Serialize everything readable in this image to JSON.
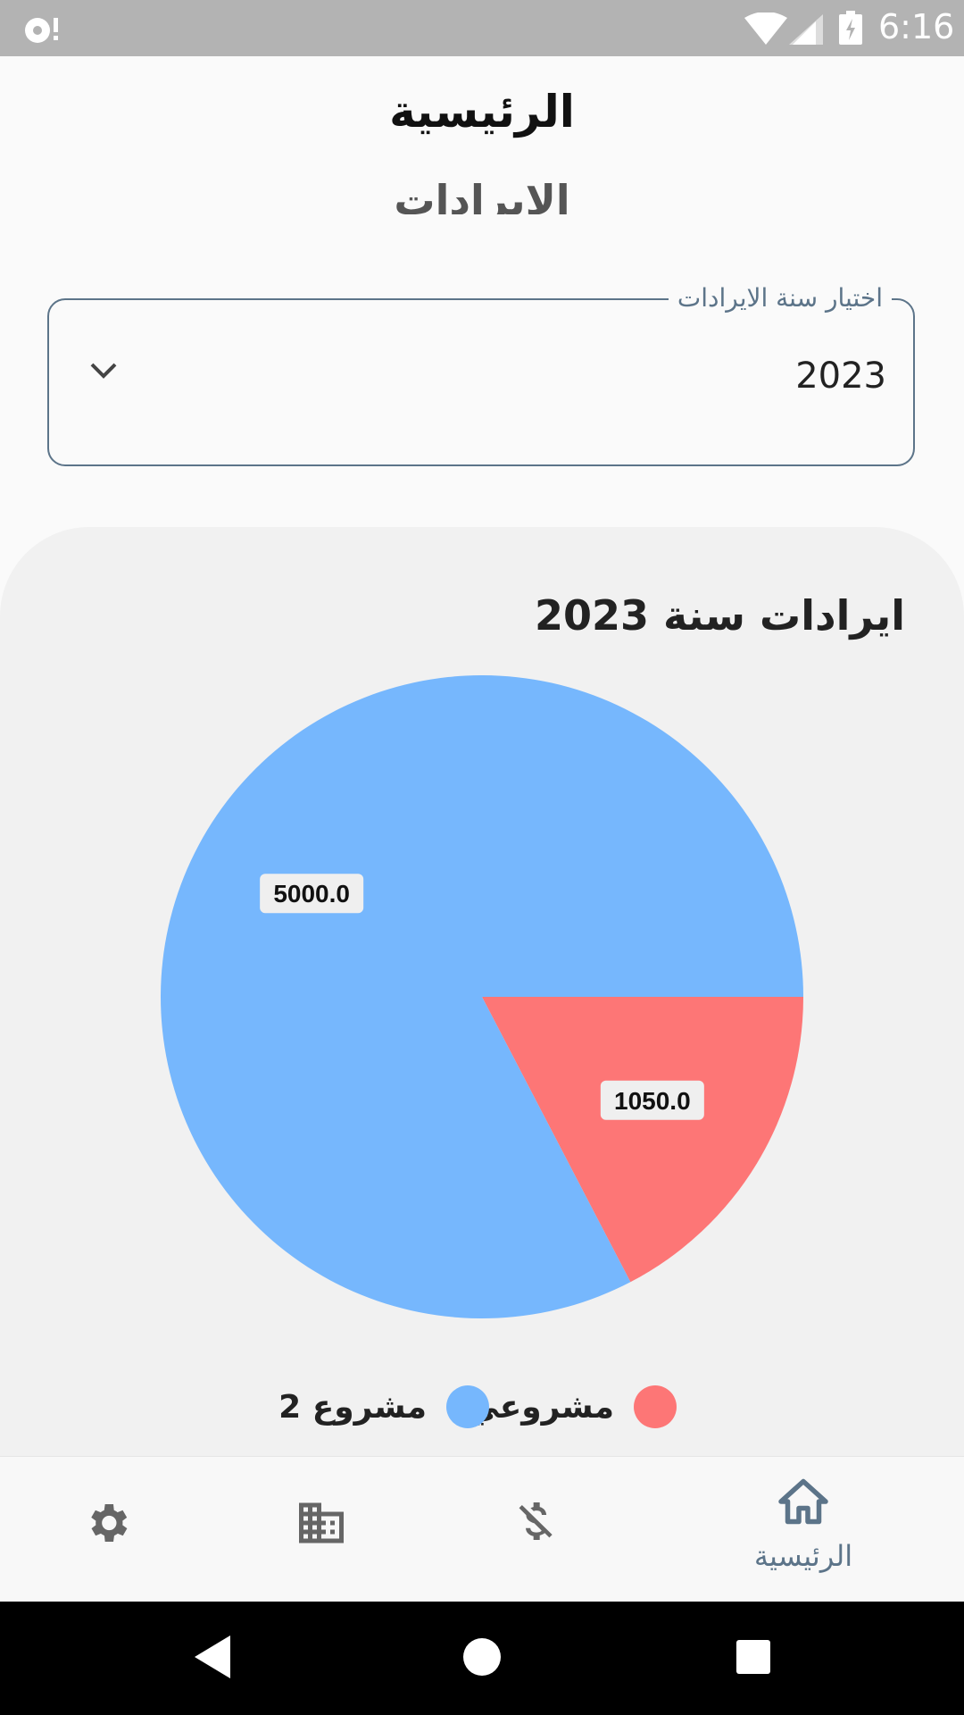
{
  "status_bar": {
    "time": "6:16",
    "icons": [
      "notification-icon",
      "wifi-icon",
      "signal-icon",
      "battery-charging-icon"
    ]
  },
  "header": {
    "title": "الرئيسية",
    "subtitle": "الايرادات"
  },
  "year_select": {
    "label": "اختيار سنة الايرادات",
    "value": "2023",
    "icon": "chevron-down-icon"
  },
  "chart_card": {
    "title": "ايرادات سنة 2023"
  },
  "chart_data": {
    "type": "pie",
    "slices": [
      {
        "label": "مشروع 2",
        "value": 5000.0,
        "value_label": "5000.0",
        "color": "#76b7fd"
      },
      {
        "label": "مشروعي",
        "value": 1050.0,
        "value_label": "1050.0",
        "color": "#fd7676"
      }
    ],
    "legend": "bottom"
  },
  "bottom_nav": {
    "items": [
      {
        "icon": "settings-icon"
      },
      {
        "icon": "building-icon"
      },
      {
        "icon": "money-off-icon"
      },
      {
        "icon": "home-icon",
        "label": "الرئيسية",
        "active": true
      }
    ],
    "active_color": "#5c7489"
  },
  "system_nav": {
    "icons": [
      "back-icon",
      "home-circle-icon",
      "recents-icon"
    ]
  }
}
